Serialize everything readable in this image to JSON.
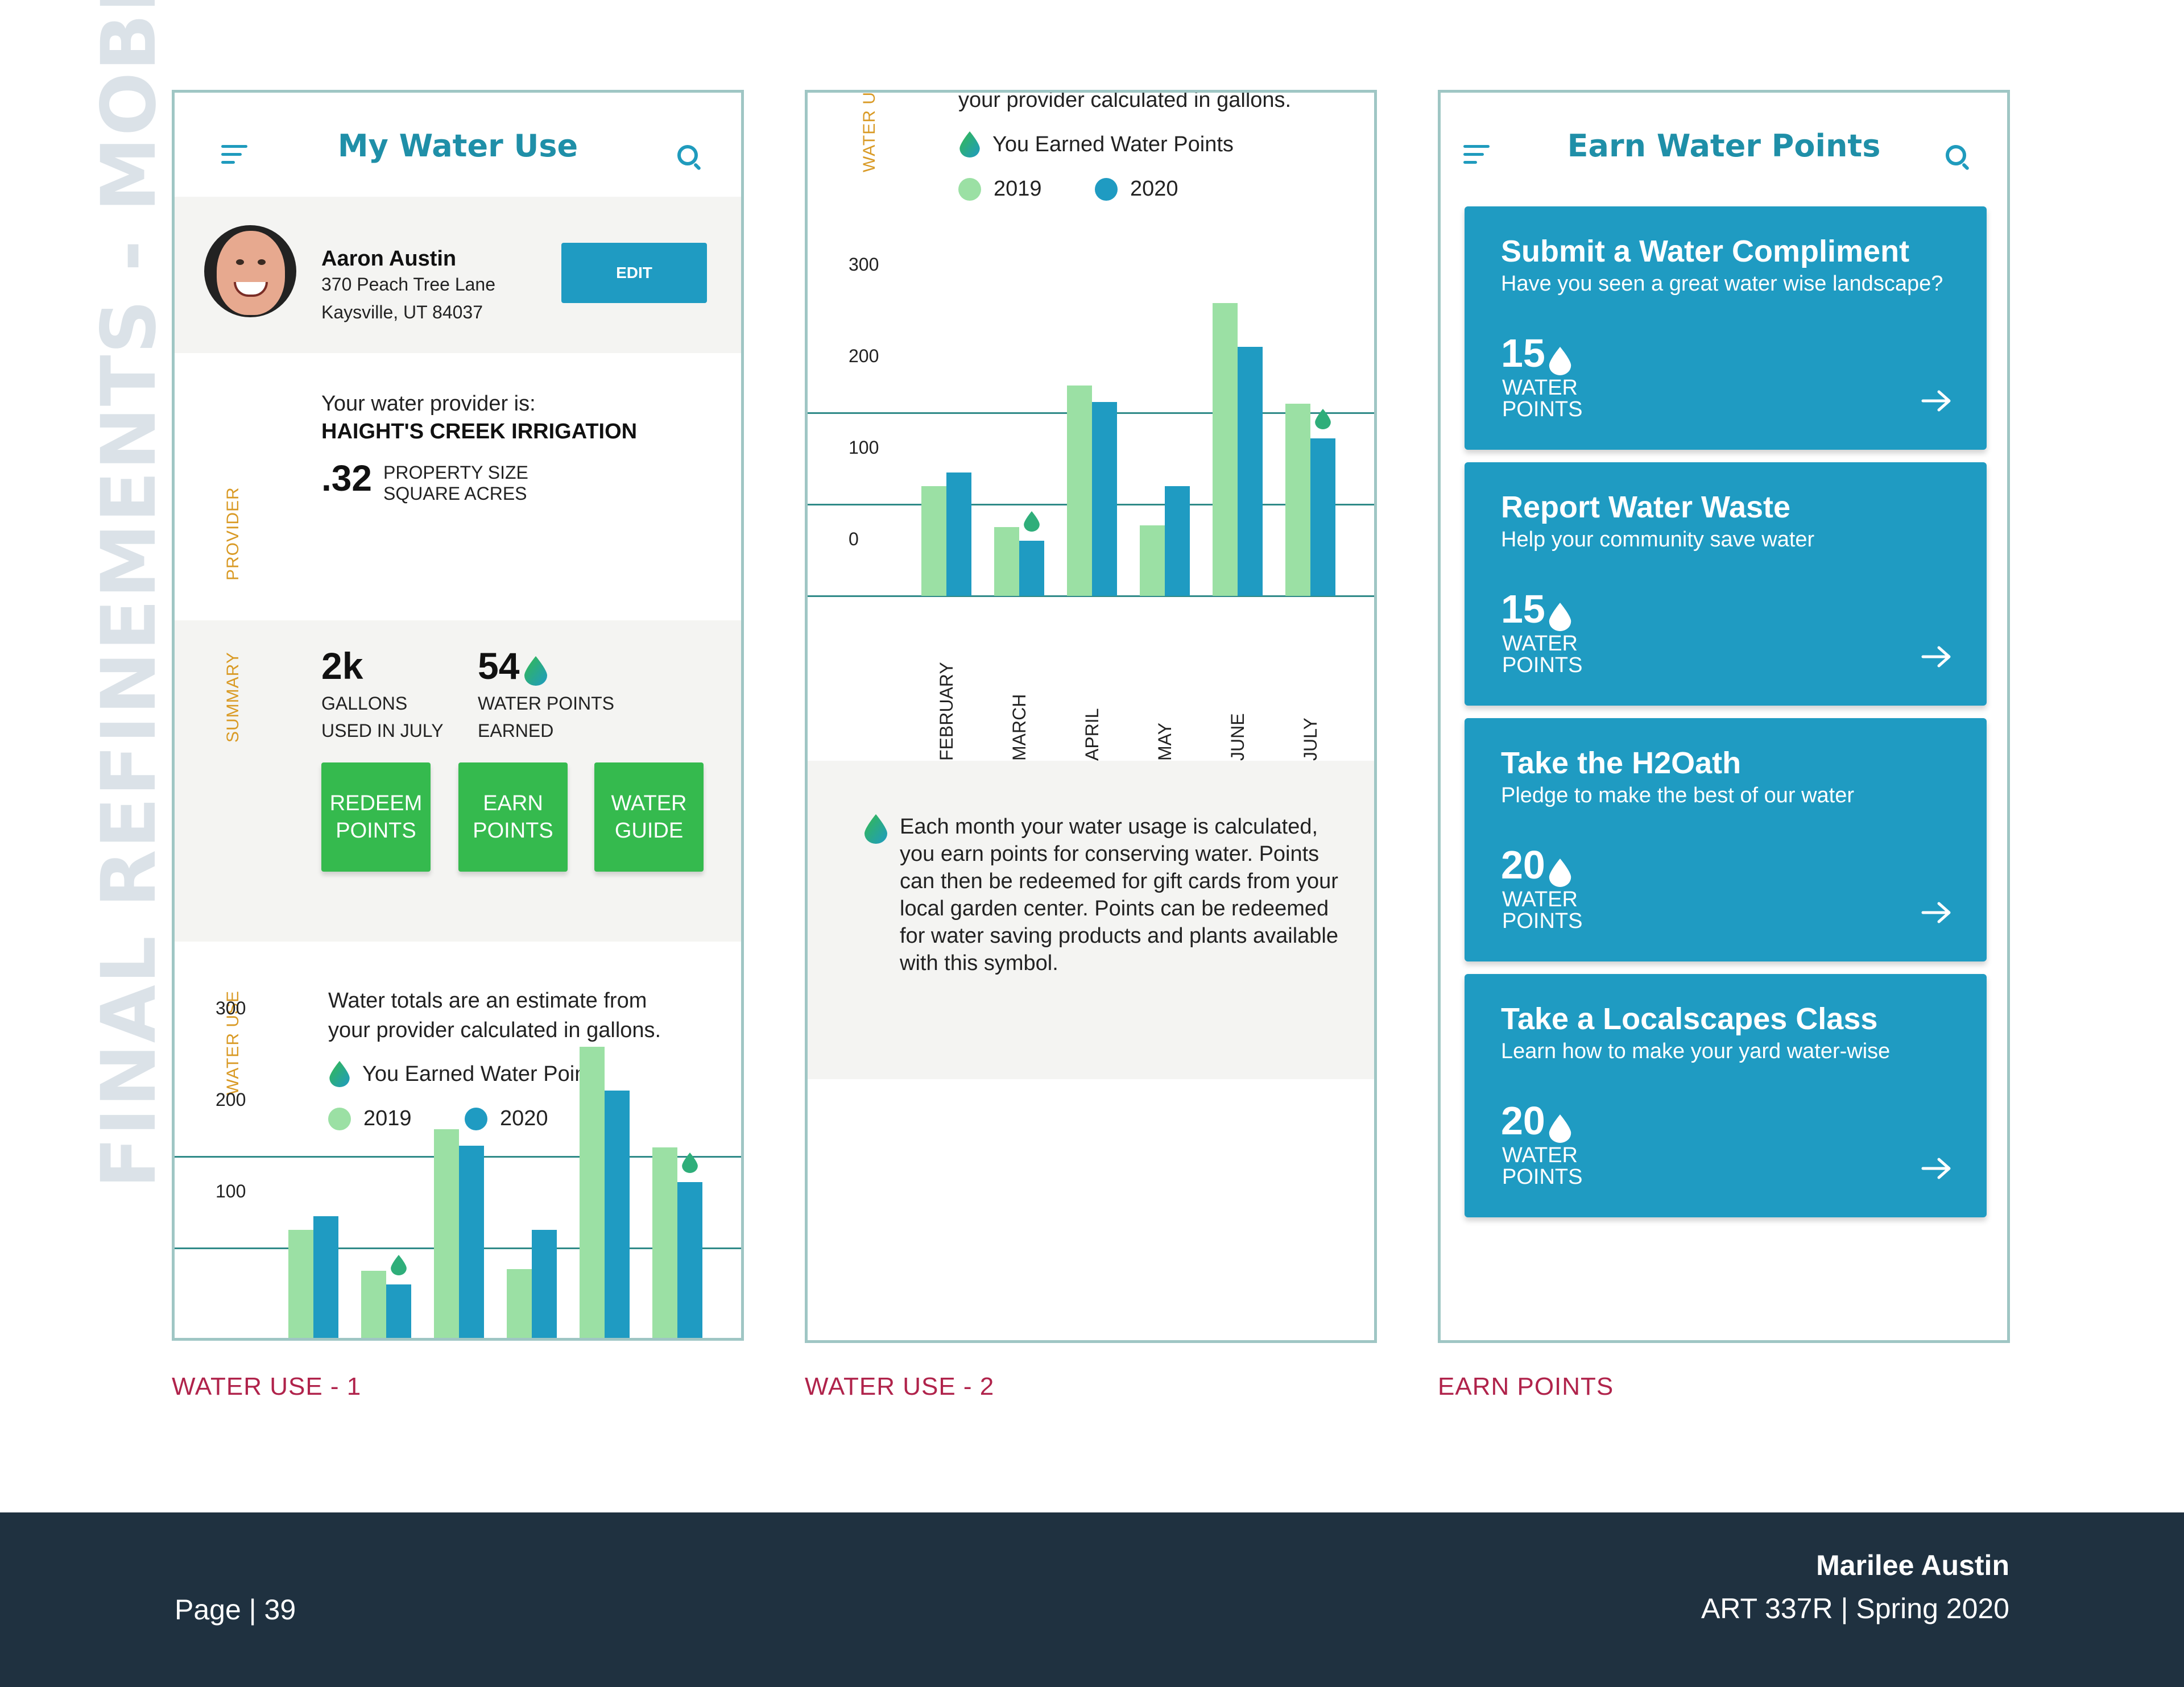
{
  "side_title": "FINAL REFINEMENTS - MOBILE",
  "captions": [
    "WATER USE - 1",
    "WATER USE - 2",
    "EARN POINTS"
  ],
  "colors": {
    "teal": "#1f9bc2",
    "green": "#35ba4e",
    "light_green": "#9be0a4",
    "orange": "#d99a25",
    "caption": "#b0234b",
    "footer": "#1f3140"
  },
  "screen1": {
    "title": "My Water Use",
    "profile": {
      "name": "Aaron Austin",
      "address1": "370 Peach Tree Lane",
      "address2": "Kaysville, UT 84037",
      "edit_label": "EDIT"
    },
    "provider": {
      "section_label": "PROVIDER",
      "intro": "Your water provider is:",
      "name": "HAIGHT'S CREEK IRRIGATION",
      "size_value": ".32",
      "size_label1": "PROPERTY SIZE",
      "size_label2": "SQUARE ACRES"
    },
    "summary": {
      "section_label": "SUMMARY",
      "gallons_value": "2k",
      "gallons_label1": "GALLONS",
      "gallons_label2": "USED IN JULY",
      "points_value": "54",
      "points_label1": "WATER POINTS",
      "points_label2": "EARNED",
      "buttons": [
        {
          "line1": "REDEEM",
          "line2": "POINTS"
        },
        {
          "line1": "EARN",
          "line2": "POINTS"
        },
        {
          "line1": "WATER",
          "line2": "GUIDE"
        }
      ]
    },
    "water_use": {
      "section_label": "WATER USE",
      "intro_line1": "Water totals are an estimate from",
      "intro_line2": "your provider calculated in gallons.",
      "earned_legend": "You Earned Water Points",
      "legend_2019": "2019",
      "legend_2020": "2020"
    }
  },
  "screen2": {
    "section_label": "WATER USE",
    "intro_line2": "your provider calculated in gallons.",
    "earned_legend": "You Earned Water Points",
    "legend_2019": "2019",
    "legend_2020": "2020",
    "info": "Each month your water usage is calculated, you earn points for conserving water. Points can then be redeemed for gift cards from your local garden center. Points can be redeemed for water saving products and plants available with this symbol."
  },
  "chart_data": {
    "type": "bar",
    "categories": [
      "FEBRUARY",
      "MARCH",
      "APRIL",
      "MAY",
      "JUNE",
      "JULY"
    ],
    "series": [
      {
        "name": "2019",
        "values": [
          120,
          75,
          230,
          77,
          320,
          210
        ]
      },
      {
        "name": "2020",
        "values": [
          135,
          60,
          212,
          120,
          272,
          172
        ]
      }
    ],
    "earned_points_months": [
      "MARCH",
      "JULY"
    ],
    "ytick_labels": [
      "0",
      "100",
      "200",
      "300"
    ],
    "ylim": [
      0,
      320
    ]
  },
  "screen3": {
    "title": "Earn Water Points",
    "points_label1": "WATER",
    "points_label2": "POINTS",
    "cards": [
      {
        "title": "Submit a Water Compliment",
        "subtitle": "Have you seen a great water wise landscape?",
        "points": "15"
      },
      {
        "title": "Report Water Waste",
        "subtitle": "Help your community save water",
        "points": "15"
      },
      {
        "title": "Take the H2Oath",
        "subtitle": "Pledge to make the best of our water",
        "points": "20"
      },
      {
        "title": "Take a Localscapes Class",
        "subtitle": "Learn how to make your yard water-wise",
        "points": "20"
      }
    ]
  },
  "footer": {
    "page": "Page | 39",
    "author": "Marilee Austin",
    "course": "ART 337R | Spring 2020"
  }
}
